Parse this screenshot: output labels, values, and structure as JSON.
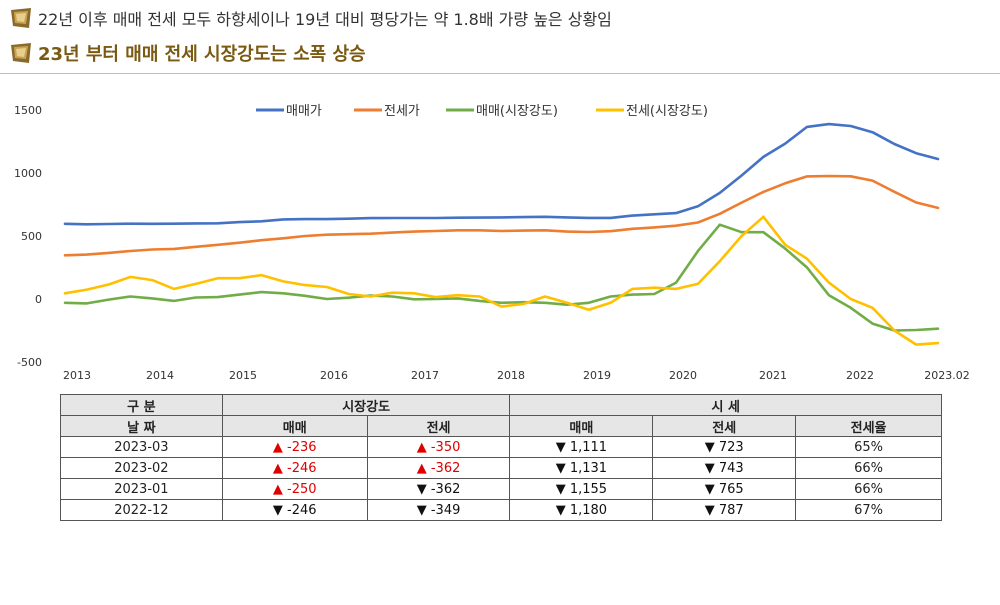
{
  "header": {
    "line1": "22년 이후 매매 전세 모두 하향세이나 19년 대비 평당가는 약 1.8배 가량 높은 상황임",
    "line2": "23년 부터 매매 전세 시장강도는 소폭 상승"
  },
  "chart_data": {
    "type": "line",
    "title": "",
    "xlabel": "",
    "ylabel": "",
    "ylim": [
      -500,
      1500
    ],
    "yticks": [
      "1500",
      "1000",
      "500",
      "0",
      "-500"
    ],
    "xtick_labels": [
      "2013",
      "2014",
      "2015",
      "2016",
      "2017",
      "2018",
      "2019",
      "2020",
      "2021",
      "2022",
      "2023.02"
    ],
    "x": [
      0,
      1,
      2,
      3,
      4,
      5,
      6,
      7,
      8,
      9,
      10,
      11,
      12,
      13,
      14,
      15,
      16,
      17,
      18,
      19,
      20,
      21,
      22,
      23,
      24,
      25,
      26,
      27,
      28,
      29,
      30,
      31,
      32,
      33,
      34,
      35,
      36,
      37,
      38,
      39,
      40
    ],
    "legend_position": "top",
    "grid": false,
    "series": [
      {
        "name": "매매가",
        "color": "#4472c4",
        "values": [
          597,
          593,
          595,
          598,
          597,
          598,
          600,
          601,
          610,
          617,
          632,
          634,
          634,
          637,
          642,
          643,
          643,
          643,
          645,
          646,
          648,
          650,
          652,
          648,
          644,
          644,
          662,
          672,
          682,
          736,
          842,
          980,
          1128,
          1233,
          1366,
          1388,
          1373,
          1324,
          1230,
          1157,
          1111
        ]
      },
      {
        "name": "전세가",
        "color": "#ed7d31",
        "values": [
          347,
          352,
          366,
          381,
          393,
          398,
          414,
          430,
          447,
          467,
          482,
          500,
          510,
          514,
          518,
          527,
          535,
          540,
          545,
          545,
          540,
          543,
          545,
          535,
          532,
          538,
          557,
          568,
          582,
          607,
          676,
          765,
          850,
          918,
          973,
          976,
          974,
          940,
          851,
          766,
          723
        ]
      },
      {
        "name": "매매(시장강도)",
        "color": "#70ad47",
        "values": [
          -30,
          -35,
          -5,
          20,
          5,
          -15,
          12,
          15,
          35,
          55,
          45,
          25,
          0,
          10,
          28,
          20,
          -2,
          0,
          5,
          -15,
          -30,
          -25,
          -30,
          -45,
          -30,
          20,
          35,
          40,
          130,
          380,
          590,
          530,
          530,
          400,
          250,
          30,
          -70,
          -195,
          -250,
          -246,
          -236
        ]
      },
      {
        "name": "전세(시장강도)",
        "color": "#ffc000",
        "values": [
          45,
          75,
          115,
          175,
          150,
          80,
          120,
          165,
          165,
          190,
          140,
          110,
          95,
          40,
          20,
          50,
          45,
          15,
          30,
          20,
          -60,
          -40,
          20,
          -30,
          -85,
          -30,
          80,
          90,
          80,
          120,
          300,
          500,
          652,
          430,
          320,
          130,
          0,
          -70,
          -250,
          -362,
          -350
        ]
      }
    ]
  },
  "table": {
    "header1": {
      "col1": "구 분",
      "group1": "시장강도",
      "group2": "시 세"
    },
    "header2": {
      "col1": "날 짜",
      "c2": "매매",
      "c3": "전세",
      "c4": "매매",
      "c5": "전세",
      "c6": "전세율"
    },
    "up_arrow": "▲",
    "down_arrow": "▼",
    "up_color": "#e00000",
    "rows": [
      {
        "date": "2023-03",
        "s_sale_dir": "up",
        "s_sale": "-236",
        "s_lease_dir": "up",
        "s_lease": "-350",
        "p_sale": "1,111",
        "p_lease": "723",
        "ratio": "65%"
      },
      {
        "date": "2023-02",
        "s_sale_dir": "up",
        "s_sale": "-246",
        "s_lease_dir": "up",
        "s_lease": "-362",
        "p_sale": "1,131",
        "p_lease": "743",
        "ratio": "66%"
      },
      {
        "date": "2023-01",
        "s_sale_dir": "up",
        "s_sale": "-250",
        "s_lease_dir": "down",
        "s_lease": "-362",
        "p_sale": "1,155",
        "p_lease": "765",
        "ratio": "66%"
      },
      {
        "date": "2022-12",
        "s_sale_dir": "down",
        "s_sale": "-246",
        "s_lease_dir": "down",
        "s_lease": "-349",
        "p_sale": "1,180",
        "p_lease": "787",
        "ratio": "67%"
      }
    ]
  }
}
